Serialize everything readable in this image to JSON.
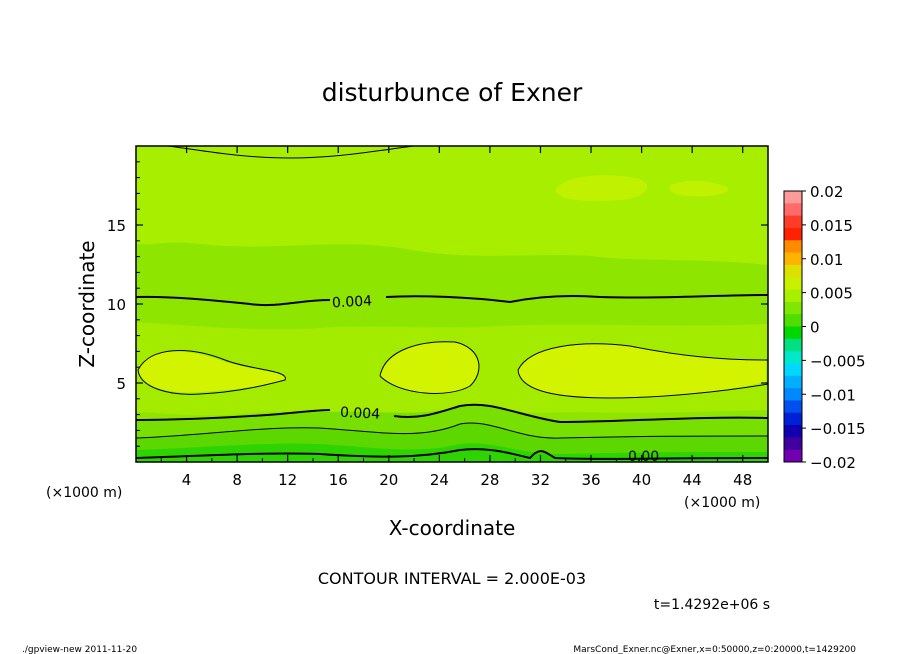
{
  "chart_data": {
    "type": "heatmap",
    "title": "disturbunce of Exner",
    "xlabel": "X-coordinate",
    "ylabel": "Z-coordinate",
    "x_units": "(×1000 m)",
    "y_units": "(×1000 m)",
    "xlim": [
      0,
      50
    ],
    "ylim": [
      0,
      20
    ],
    "x_ticks": [
      "4",
      "8",
      "12",
      "16",
      "20",
      "24",
      "28",
      "32",
      "36",
      "40",
      "44",
      "48"
    ],
    "y_ticks": [
      "5",
      "10",
      "15"
    ],
    "colorbar": {
      "levels": [
        "0.02",
        "0.015",
        "0.01",
        "0.005",
        "0",
        "−0.005",
        "−0.01",
        "−0.015",
        "−0.02"
      ],
      "colors": [
        "#ff9a9a",
        "#ff6a6a",
        "#ff3b2a",
        "#ff2200",
        "#ff8c00",
        "#ffb300",
        "#e0e000",
        "#c8f000",
        "#a8f000",
        "#80e800",
        "#50dd00",
        "#00d800",
        "#00e080",
        "#00e8c8",
        "#00d8ff",
        "#00b0ff",
        "#0088ff",
        "#0050f0",
        "#0020d8",
        "#1000b0",
        "#4000a0",
        "#7000b0"
      ]
    },
    "contour_interval_text": "CONTOUR INTERVAL = 2.000E-03",
    "contour_labels": [
      "0.004",
      "0.004",
      "0.00"
    ],
    "time_text": "t=1.4292e+06 s",
    "grid": false
  },
  "footer": {
    "left": "./gpview-new   2011-11-20",
    "right": "MarsCond_Exner.nc@Exner,x=0:50000,z=0:20000,t=1429200"
  }
}
